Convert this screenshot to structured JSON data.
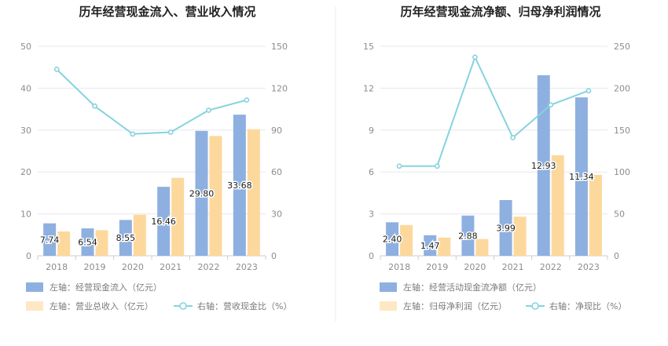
{
  "chart_data": [
    {
      "type": "bar",
      "title": "历年经营现金流入、营业收入情况",
      "categories": [
        "2018",
        "2019",
        "2020",
        "2021",
        "2022",
        "2023"
      ],
      "left_axis": {
        "ylim": [
          0,
          50
        ],
        "ticks": [
          "0",
          "10",
          "20",
          "30",
          "40",
          "50"
        ]
      },
      "right_axis": {
        "ylim": [
          0,
          150
        ],
        "ticks": [
          "0",
          "30",
          "60",
          "90",
          "120",
          "150"
        ]
      },
      "series": [
        {
          "name": "左轴：经营现金流入（亿元）",
          "type": "bar",
          "axis": "left",
          "color": "#8eb0e0",
          "values": [
            7.74,
            6.54,
            8.55,
            16.46,
            29.8,
            33.68
          ],
          "labels": [
            "7.74",
            "6.54",
            "8.55",
            "16.46",
            "29.80",
            "33.68"
          ]
        },
        {
          "name": "左轴：营业总收入（亿元）",
          "type": "bar",
          "axis": "left",
          "color": "#fdd89c",
          "values": [
            5.8,
            6.1,
            9.8,
            18.6,
            28.6,
            30.2
          ]
        },
        {
          "name": "右轴：营收现金比（%）",
          "type": "line",
          "axis": "right",
          "color": "#86d3de",
          "values": [
            133.5,
            107.2,
            87.2,
            88.5,
            104.2,
            111.5
          ]
        }
      ]
    },
    {
      "type": "bar",
      "title": "历年经营现金流净额、归母净利润情况",
      "categories": [
        "2018",
        "2019",
        "2020",
        "2021",
        "2022",
        "2023"
      ],
      "left_axis": {
        "ylim": [
          0,
          15
        ],
        "ticks": [
          "0",
          "3",
          "6",
          "9",
          "12",
          "15"
        ]
      },
      "right_axis": {
        "ylim": [
          0,
          250
        ],
        "ticks": [
          "0",
          "50",
          "100",
          "150",
          "200",
          "250"
        ]
      },
      "series": [
        {
          "name": "左轴：经营活动现金流净额（亿元）",
          "type": "bar",
          "axis": "left",
          "color": "#8eb0e0",
          "values": [
            2.4,
            1.47,
            2.88,
            3.99,
            12.93,
            11.34
          ],
          "labels": [
            "2.40",
            "1.47",
            "2.88",
            "3.99",
            "12.93",
            "11.34"
          ]
        },
        {
          "name": "左轴：归母净利润（亿元）",
          "type": "bar",
          "axis": "left",
          "color": "#fdd89c",
          "values": [
            2.2,
            1.3,
            1.2,
            2.8,
            7.2,
            5.8
          ]
        },
        {
          "name": "右轴：净现比（%）",
          "type": "line",
          "axis": "right",
          "color": "#86d3de",
          "values": [
            107,
            107,
            237,
            141,
            180,
            197
          ]
        }
      ]
    }
  ]
}
